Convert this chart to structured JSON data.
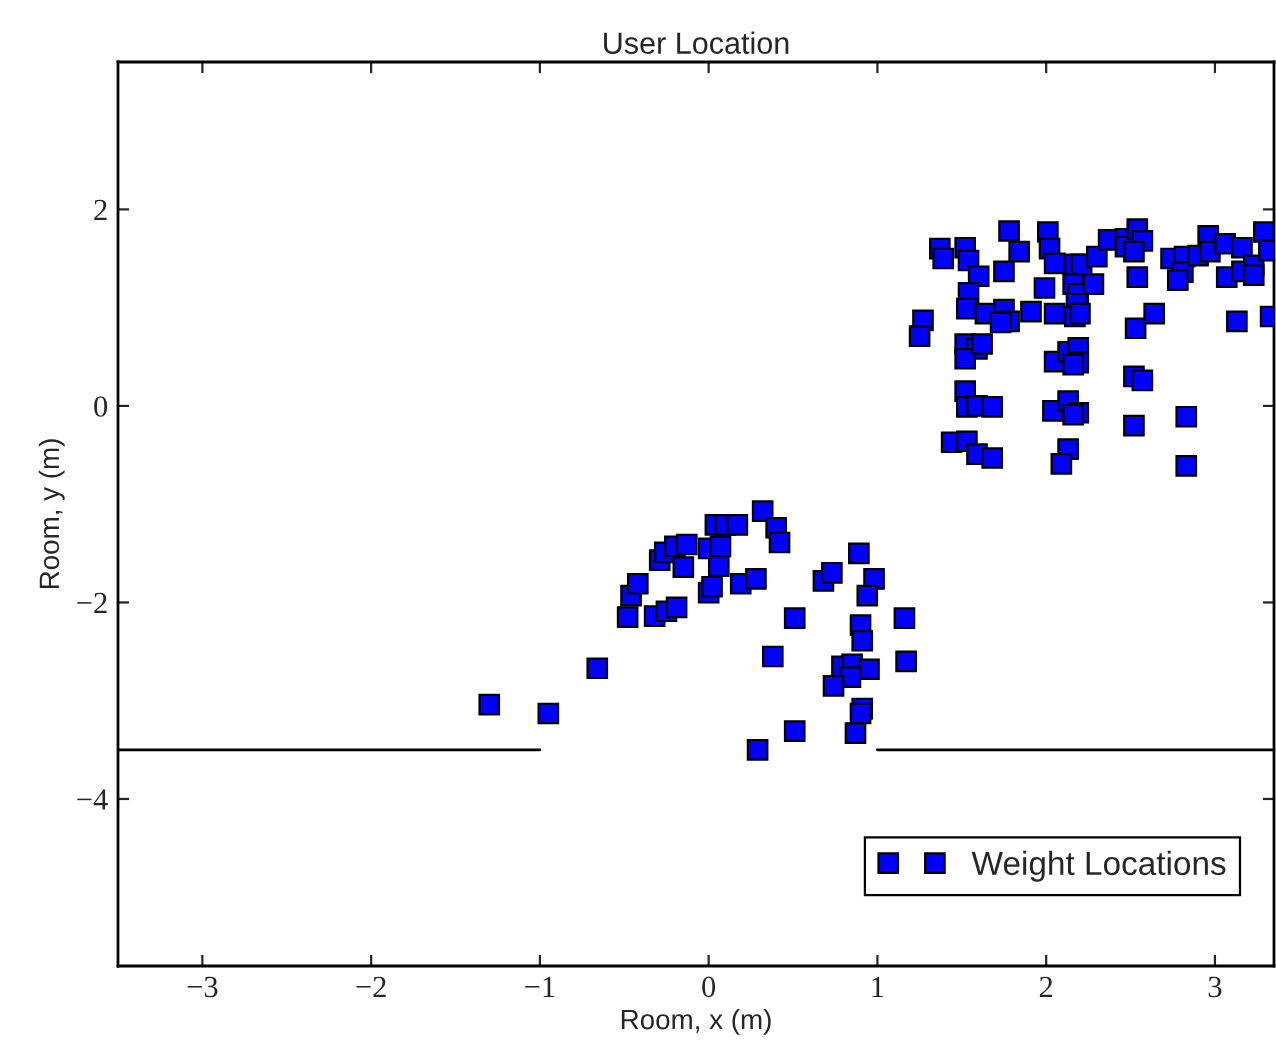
{
  "chart_data": {
    "type": "scatter",
    "title": "User Location",
    "xlabel": "Room, x (m)",
    "ylabel": "Room, y (m)",
    "xlim": [
      -3.5,
      3.35
    ],
    "ylim": [
      -5.7,
      3.5
    ],
    "xticks": [
      -3,
      -2,
      -1,
      0,
      1,
      2,
      3
    ],
    "yticks": [
      -4,
      -2,
      0,
      2
    ],
    "grid": false,
    "legend": "bottom right",
    "marker": "square",
    "series": [
      {
        "name": "Weight Locations",
        "color": "#0000ff",
        "x": [
          -1.3,
          -0.95,
          -0.66,
          -0.48,
          -0.46,
          -0.42,
          -0.32,
          -0.25,
          -0.19,
          -0.29,
          -0.26,
          -0.2,
          -0.13,
          -0.15,
          0.0,
          0.02,
          0.0,
          0.07,
          0.06,
          0.04,
          0.1,
          0.17,
          0.19,
          0.28,
          0.32,
          0.4,
          0.42,
          0.38,
          0.51,
          0.29,
          0.51,
          0.68,
          0.73,
          0.89,
          0.98,
          0.94,
          0.9,
          0.91,
          0.79,
          0.85,
          0.95,
          0.84,
          0.74,
          0.91,
          0.9,
          0.87,
          1.16,
          1.17,
          1.37,
          1.39,
          1.52,
          1.54,
          1.6,
          1.54,
          1.53,
          1.64,
          1.75,
          1.78,
          1.73,
          1.78,
          1.84,
          1.75,
          1.27,
          1.25,
          1.52,
          1.59,
          1.52,
          1.62,
          1.52,
          1.53,
          1.59,
          1.68,
          1.44,
          1.53,
          1.59,
          1.68,
          1.91,
          1.99,
          2.01,
          2.02,
          2.05,
          2.05,
          2.17,
          2.21,
          2.16,
          2.19,
          2.18,
          2.17,
          2.2,
          2.28,
          2.3,
          2.37,
          2.47,
          2.47,
          2.54,
          2.57,
          2.52,
          2.54,
          2.05,
          2.13,
          2.19,
          2.19,
          2.16,
          2.53,
          2.64,
          2.04,
          2.13,
          2.19,
          2.16,
          2.52,
          2.57,
          2.13,
          2.09,
          2.52,
          2.83,
          2.83,
          2.74,
          2.82,
          2.81,
          2.78,
          2.9,
          2.96,
          2.97,
          3.06,
          3.16,
          3.07,
          3.16,
          3.23,
          3.23,
          3.29,
          3.32,
          3.13,
          3.33
        ],
        "values": [
          -3.04,
          -3.13,
          -2.67,
          -2.15,
          -1.93,
          -1.81,
          -2.14,
          -2.09,
          -2.05,
          -1.57,
          -1.49,
          -1.43,
          -1.41,
          -1.64,
          -1.9,
          -1.84,
          -1.45,
          -1.43,
          -1.63,
          -1.21,
          -1.21,
          -1.21,
          -1.81,
          -1.76,
          -1.07,
          -1.24,
          -1.39,
          -2.55,
          -2.16,
          -3.5,
          -3.31,
          -1.78,
          -1.7,
          -1.5,
          -1.76,
          -1.93,
          -2.23,
          -2.39,
          -2.65,
          -2.63,
          -2.68,
          -2.76,
          -2.85,
          -3.08,
          -3.13,
          -3.33,
          -2.16,
          -2.6,
          1.6,
          1.5,
          1.61,
          1.48,
          1.32,
          1.15,
          0.99,
          0.94,
          0.98,
          0.86,
          0.85,
          1.78,
          1.57,
          1.37,
          0.87,
          0.71,
          0.63,
          0.58,
          0.48,
          0.63,
          0.15,
          -0.01,
          0.0,
          -0.01,
          -0.37,
          -0.36,
          -0.49,
          -0.53,
          0.96,
          1.2,
          1.77,
          1.6,
          1.45,
          0.94,
          1.44,
          1.44,
          1.24,
          1.14,
          1.04,
          0.91,
          0.94,
          1.24,
          1.52,
          1.69,
          1.7,
          1.62,
          1.8,
          1.68,
          1.57,
          1.31,
          0.45,
          0.55,
          0.59,
          0.44,
          0.42,
          0.79,
          0.94,
          -0.05,
          0.05,
          -0.07,
          -0.09,
          0.3,
          0.26,
          -0.44,
          -0.59,
          -0.2,
          -0.11,
          -0.61,
          1.5,
          1.52,
          1.36,
          1.28,
          1.53,
          1.73,
          1.57,
          1.65,
          1.61,
          1.31,
          1.37,
          1.43,
          1.33,
          1.77,
          1.58,
          0.86,
          0.91
        ]
      },
      {
        "type": "line",
        "color": "#000000",
        "marker": "none",
        "line_style": "solid",
        "x": [
          -3.5,
          -1,
          0,
          1,
          3.35
        ],
        "values": [
          -3.5,
          -3.5,
          null,
          -3.5,
          -3.5
        ]
      }
    ]
  }
}
